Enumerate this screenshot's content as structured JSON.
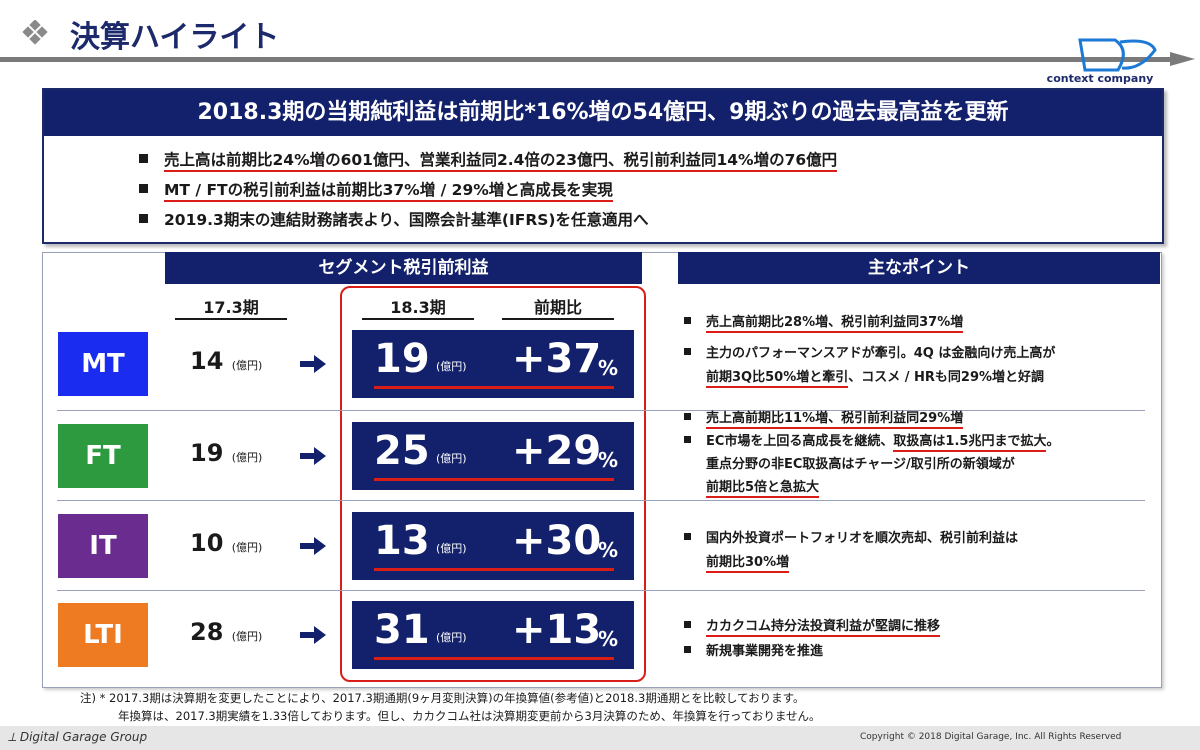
{
  "header": {
    "title": "決算ハイライト",
    "logo_text": "context company"
  },
  "banner": {
    "headline": "2018.3期の当期純利益は前期比*16%増の54億円、9期ぶりの過去最高益を更新",
    "bullets": [
      "売上高は前期比24%増の601億円、営業利益同2.4倍の23億円、税引前利益同14%増の76億円",
      "MT / FTの税引前利益は前期比37%増 / 29%増と高成長を実現",
      "2019.3期末の連結財務諸表より、国際会計基準(IFRS)を任意適用へ"
    ]
  },
  "segments_header": "セグメント税引前利益",
  "points_header": "主なポイント",
  "columns": {
    "prev": "17.3期",
    "current": "18.3期",
    "change": "前期比"
  },
  "unit": "(億円)",
  "segments": [
    {
      "name": "MT",
      "color": "#1a2cf0",
      "prev": "14",
      "current": "19",
      "change": "+37",
      "pct": "%"
    },
    {
      "name": "FT",
      "color": "#2e9a3f",
      "prev": "19",
      "current": "25",
      "change": "+29",
      "pct": "%"
    },
    {
      "name": "IT",
      "color": "#6a2d8f",
      "prev": "10",
      "current": "13",
      "change": "+30",
      "pct": "%"
    },
    {
      "name": "LTI",
      "color": "#ee7b22",
      "prev": "28",
      "current": "31",
      "change": "+13",
      "pct": "%"
    }
  ],
  "points": {
    "mt": [
      "売上高前期比28%増、税引前利益同37%増",
      "主力のパフォーマンスアドが牽引。4Q は金融向け売上高が",
      "前期3Q比50%増と牽引",
      "、コスメ / HRも同29%増と好調"
    ],
    "ft": [
      "売上高前期比11%増、税引前利益同29%増",
      "EC市場を上回る高成長を継続、",
      "取扱高は1.5兆円まで拡大",
      "。",
      "重点分野の非EC取扱高はチャージ/取引所の新領域が",
      "前期比5倍と急拡大"
    ],
    "it": [
      "国内外投資ポートフォリオを順次売却、税引前利益は",
      "前期比30%増"
    ],
    "lti": [
      "カカクコム持分法投資利益が堅調に推移",
      "新規事業開発を推進"
    ]
  },
  "notes": [
    "注) * 2017.3期は決算期を変更したことにより、2017.3期通期(9ヶ月変則決算)の年換算値(参考値)と2018.3期通期とを比較しております。",
    "年換算は、2017.3期実績を1.33倍しております。但し、カカクコム社は決算期変更前から3月決算のため、年換算を行っておりません。"
  ],
  "footer": {
    "company": "Digital Garage Group",
    "copyright": "Copyright © 2018 Digital Garage, Inc. All Rights Reserved"
  },
  "colors": {
    "navy": "#13206b",
    "red": "#d91e18"
  }
}
